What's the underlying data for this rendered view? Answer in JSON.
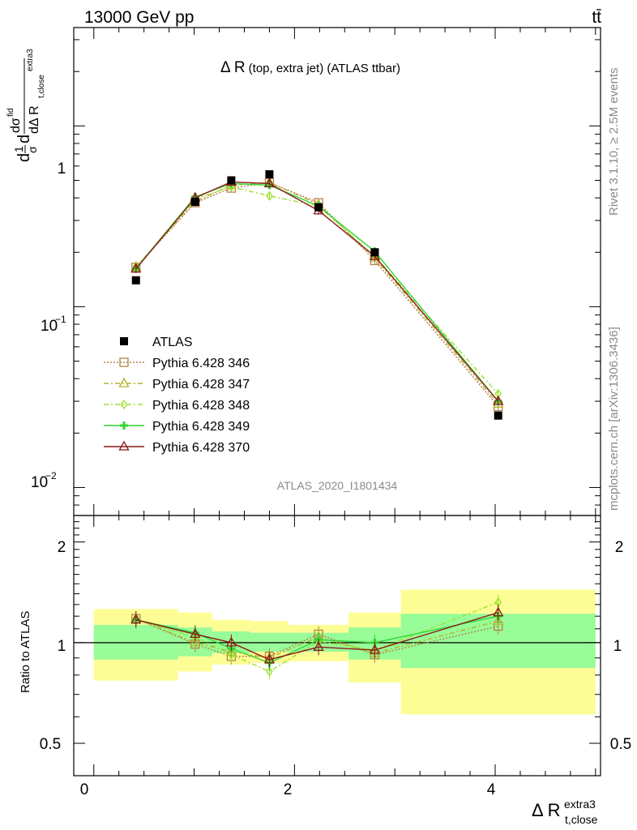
{
  "header": {
    "energy": "13000 GeV pp",
    "process": "tt̄"
  },
  "side": {
    "rivet": "Rivet 3.1.10, ≥ 2.5M events",
    "mcplots": "mcplots.cern.ch [arXiv:1306.3436]"
  },
  "chart_data": {
    "type": "line",
    "title": "Δ R",
    "title_small": "(top, extra jet) (ATLAS ttbar)",
    "analysis_tag": "ATLAS_2020_I1801434",
    "ylabel_main": "dσ/dΔR normalized",
    "ylabel_ratio": "Ratio to ATLAS",
    "xlabel": "Δ R",
    "xlabel_sup": "extra3",
    "xlabel_sub": "t,close",
    "xlim": [
      -0.2,
      5.05
    ],
    "ylim_main": [
      0.007,
      3.5
    ],
    "ylim_ratio": [
      0.4,
      2.4
    ],
    "log_y_main": true,
    "main_ytick_labels": [
      "1",
      "10",
      "−1",
      "10",
      "−2"
    ],
    "ratio_ytick_labels": [
      "2",
      "1",
      "0.5",
      "2",
      "0.5"
    ],
    "xtick_labels": [
      "0",
      "2",
      "4"
    ],
    "bins": [
      [
        0.0,
        0.84
      ],
      [
        0.84,
        1.18
      ],
      [
        1.18,
        1.56
      ],
      [
        1.56,
        1.94
      ],
      [
        1.94,
        2.54
      ],
      [
        2.54,
        3.06
      ],
      [
        3.06,
        5.0
      ]
    ],
    "x": [
      0.42,
      1.01,
      1.37,
      1.75,
      2.24,
      2.8,
      4.03
    ],
    "atlas": {
      "name": "ATLAS",
      "values": [
        0.14,
        0.38,
        0.5,
        0.54,
        0.355,
        0.2,
        0.025
      ],
      "band_inner": [
        [
          0.89,
          1.13
        ],
        [
          0.91,
          1.11
        ],
        [
          0.93,
          1.08
        ],
        [
          0.94,
          1.07
        ],
        [
          0.94,
          1.07
        ],
        [
          0.89,
          1.11
        ],
        [
          0.84,
          1.22
        ]
      ],
      "band_outer": [
        [
          0.77,
          1.26
        ],
        [
          0.82,
          1.23
        ],
        [
          0.86,
          1.17
        ],
        [
          0.87,
          1.16
        ],
        [
          0.88,
          1.13
        ],
        [
          0.76,
          1.23
        ],
        [
          0.61,
          1.44
        ]
      ]
    },
    "series": [
      {
        "name": "Pythia 6.428 346",
        "color": "#b5814a",
        "marker": "square",
        "dash": "2,2",
        "values": [
          0.165,
          0.376,
          0.453,
          0.486,
          0.376,
          0.18,
          0.028
        ],
        "ratio": [
          1.18,
          0.99,
          0.91,
          0.91,
          1.06,
          0.92,
          1.12
        ]
      },
      {
        "name": "Pythia 6.428 347",
        "color": "#b3b32e",
        "marker": "triangle",
        "dash": "6,3,2,3",
        "values": [
          0.166,
          0.382,
          0.47,
          0.487,
          0.368,
          0.186,
          0.029
        ],
        "ratio": [
          1.18,
          1.0,
          0.94,
          0.9,
          1.04,
          0.93,
          1.16
        ]
      },
      {
        "name": "Pythia 6.428 348",
        "color": "#9ee02e",
        "marker": "diamond",
        "dash": "6,3,2,3",
        "values": [
          0.163,
          0.395,
          0.46,
          0.41,
          0.36,
          0.19,
          0.033
        ],
        "ratio": [
          1.17,
          1.04,
          0.92,
          0.82,
          1.01,
          0.95,
          1.32
        ]
      },
      {
        "name": "Pythia 6.428 349",
        "color": "#33d633",
        "marker": "cross",
        "dash": "",
        "values": [
          0.163,
          0.405,
          0.48,
          0.47,
          0.36,
          0.202,
          0.03
        ],
        "ratio": [
          1.17,
          1.07,
          0.96,
          0.87,
          1.02,
          1.0,
          1.2
        ]
      },
      {
        "name": "Pythia 6.428 370",
        "color": "#8b1a1a",
        "marker": "triangle",
        "dash": "",
        "values": [
          0.162,
          0.4,
          0.49,
          0.48,
          0.34,
          0.19,
          0.03
        ],
        "ratio": [
          1.17,
          1.06,
          1.0,
          0.89,
          0.97,
          0.95,
          1.23
        ]
      }
    ]
  }
}
